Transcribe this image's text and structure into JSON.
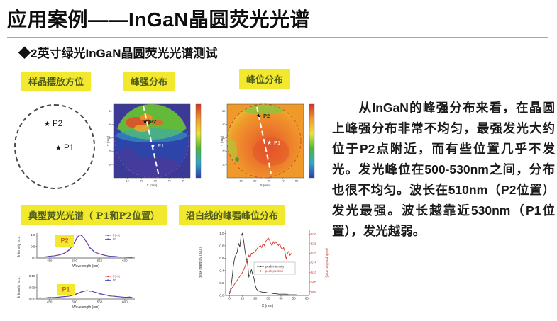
{
  "slide": {
    "title": "应用案例——InGaN晶圆荧光光谱",
    "subtitle": "◆2英寸绿光InGaN晶圆荧光光谱测试",
    "body_text": "从InGaN的峰强分布来看，在晶圆上峰强分布非常不均匀，最强发光大约位于P2点附近，而有些位置几乎不发光。发光峰位在500-530nm之间，分布也很不均匀。波长在510nm（P2位置）发光最强。波长越靠近530nm（P1位置），发光越弱。"
  },
  "labels": {
    "sample_layout": "样品摆放方位",
    "peak_intensity_map": "峰强分布",
    "peak_position_map": "峰位分布",
    "typical_spectra": "典型荧光光谱（ P1和P2位置）",
    "line_profile": "沿白线的峰强峰位分布"
  },
  "markers": {
    "p1": "P1",
    "p2": "P2"
  },
  "colors": {
    "highlight": "#f2e82d",
    "tag_text": "#4e5c1e",
    "annotation_text": "#c4641d",
    "series_red": "#d6372b",
    "series_blue": "#4343c0",
    "series_black": "#333333"
  },
  "chart_data": [
    {
      "id": "map-intensity",
      "type": "heatmap",
      "title": "峰强分布",
      "xlabel": "X (mm)",
      "ylabel": "Y (mm)",
      "xlim": [
        0,
        55
      ],
      "ylim": [
        0,
        55
      ],
      "xticks": [
        10,
        20,
        30,
        40,
        50
      ],
      "yticks": [
        10,
        20,
        30,
        40,
        50
      ],
      "summary": "wafer map: strong emission (green/red) near P2 at top, very weak (dark blue) over lower two thirds; white dashed scan line through P2 and P1",
      "colorbar": "rainbow, high at top"
    },
    {
      "id": "map-position",
      "type": "heatmap",
      "title": "峰位分布",
      "xlabel": "X (mm)",
      "ylabel": "Y (mm)",
      "xlim": [
        0,
        55
      ],
      "ylim": [
        0,
        55
      ],
      "xticks": [
        10,
        20,
        30,
        40,
        50
      ],
      "yticks": [
        10,
        20,
        30,
        40,
        50
      ],
      "summary": "wafer map: peak wavelength ~510nm (green) near top edge/P2, ~525-530nm (orange/red) at center near P1; white dashed scan line",
      "colorbar": "rainbow, high at top"
    },
    {
      "id": "spectrum-p2",
      "type": "line",
      "annotation": "P2",
      "xlabel": "Wavelength (nm)",
      "ylabel": "Intensity (a.u.)",
      "xlim": [
        425,
        620
      ],
      "ylim": [
        0,
        1.08
      ],
      "xticks": [
        450,
        500,
        550,
        600
      ],
      "yticks": [
        0,
        0.5,
        1.0
      ],
      "ytick_labels": [
        "0.0",
        "0.5",
        "1.0"
      ],
      "legend": [
        {
          "label": "P2-fit",
          "color": "#d6372b"
        },
        {
          "label": "P2",
          "color": "#4343c0"
        }
      ],
      "series": [
        {
          "name": "P2-fit",
          "color": "#d6372b",
          "x": [
            430,
            440,
            450,
            460,
            470,
            480,
            490,
            495,
            500,
            505,
            510,
            512,
            515,
            520,
            525,
            530,
            540,
            550,
            560,
            570,
            580,
            590,
            600,
            610,
            615
          ],
          "y": [
            0.04,
            0.05,
            0.07,
            0.1,
            0.14,
            0.22,
            0.37,
            0.5,
            0.67,
            0.86,
            0.99,
            1.0,
            0.97,
            0.82,
            0.63,
            0.47,
            0.27,
            0.17,
            0.11,
            0.08,
            0.06,
            0.05,
            0.04,
            0.03,
            0.03
          ]
        },
        {
          "name": "P2",
          "color": "#4343c0",
          "x": [
            430,
            440,
            450,
            460,
            470,
            480,
            490,
            495,
            500,
            505,
            510,
            512,
            515,
            520,
            525,
            530,
            540,
            550,
            560,
            570,
            580,
            590,
            600,
            610,
            615
          ],
          "y": [
            0.05,
            0.04,
            0.08,
            0.09,
            0.13,
            0.2,
            0.35,
            0.52,
            0.7,
            0.9,
            1.0,
            0.99,
            0.95,
            0.84,
            0.66,
            0.44,
            0.25,
            0.18,
            0.12,
            0.07,
            0.07,
            0.04,
            0.05,
            0.04,
            0.03
          ]
        }
      ]
    },
    {
      "id": "spectrum-p1",
      "type": "line",
      "annotation": "P1",
      "xlabel": "Wavelength (nm)",
      "ylabel": "Intensity (a.u.)",
      "xlim": [
        425,
        620
      ],
      "ylim": [
        0,
        0.108
      ],
      "xticks": [
        450,
        500,
        550,
        600
      ],
      "yticks": [
        0,
        0.05,
        0.1
      ],
      "ytick_labels": [
        "0.00",
        "0.05",
        "0.10"
      ],
      "legend": [
        {
          "label": "P1-fit",
          "color": "#d6372b"
        },
        {
          "label": "P1",
          "color": "#4343c0"
        }
      ],
      "series": [
        {
          "name": "P1-fit",
          "color": "#d6372b",
          "x": [
            430,
            440,
            450,
            460,
            470,
            480,
            490,
            500,
            505,
            510,
            515,
            520,
            525,
            530,
            535,
            540,
            545,
            550,
            560,
            570,
            580,
            590,
            600,
            610,
            615
          ],
          "y": [
            0.005,
            0.005,
            0.006,
            0.007,
            0.008,
            0.01,
            0.013,
            0.018,
            0.022,
            0.027,
            0.031,
            0.034,
            0.036,
            0.035,
            0.033,
            0.03,
            0.027,
            0.024,
            0.018,
            0.014,
            0.011,
            0.009,
            0.008,
            0.007,
            0.007
          ]
        },
        {
          "name": "P1",
          "color": "#4343c0",
          "x": [
            430,
            440,
            450,
            460,
            470,
            480,
            490,
            500,
            505,
            510,
            515,
            520,
            525,
            530,
            535,
            540,
            545,
            550,
            560,
            570,
            580,
            590,
            600,
            610,
            615
          ],
          "y": [
            0.006,
            0.004,
            0.007,
            0.006,
            0.009,
            0.011,
            0.012,
            0.019,
            0.024,
            0.028,
            0.033,
            0.035,
            0.037,
            0.034,
            0.035,
            0.029,
            0.028,
            0.022,
            0.019,
            0.013,
            0.012,
            0.01,
            0.007,
            0.009,
            0.006
          ]
        }
      ]
    },
    {
      "id": "line-profile",
      "type": "line-dual",
      "xlabel": "X (mm)",
      "ylabel_left": "peak intensity (a.u.)",
      "ylabel_right": "peak position (nm)",
      "xlim": [
        -3,
        62
      ],
      "ylim_left": [
        0,
        1.05
      ],
      "ylim_right": [
        498,
        532
      ],
      "xticks": [
        0,
        10,
        20,
        30,
        40,
        50,
        60
      ],
      "yticks_left": [
        0,
        0.2,
        0.4,
        0.6,
        0.8,
        1.0
      ],
      "ytick_labels_left": [
        "0.0",
        "0.2",
        "0.4",
        "0.6",
        "0.8",
        "1.0"
      ],
      "yticks_right": [
        500,
        505,
        510,
        515,
        520,
        525,
        530
      ],
      "legend": [
        {
          "label": "peak intensity",
          "color": "#333333"
        },
        {
          "label": "peak position",
          "color": "#d6372b"
        }
      ],
      "series": [
        {
          "name": "peak intensity",
          "axis": "left",
          "color": "#333333",
          "x": [
            0,
            1,
            2,
            3,
            4,
            5,
            6,
            7,
            8,
            9,
            10,
            11,
            12,
            13,
            14,
            15,
            16,
            17,
            18,
            19,
            20,
            21,
            22,
            24,
            26,
            28,
            30,
            32,
            34,
            36,
            38,
            40,
            42,
            44,
            46,
            48,
            50,
            52
          ],
          "y": [
            0.02,
            0.12,
            0.28,
            0.48,
            0.6,
            0.66,
            0.7,
            0.84,
            0.78,
            0.97,
            1.0,
            0.88,
            0.72,
            0.6,
            0.52,
            0.3,
            0.34,
            0.42,
            0.34,
            0.28,
            0.16,
            0.1,
            0.08,
            0.06,
            0.05,
            0.05,
            0.04,
            0.04,
            0.03,
            0.03,
            0.02,
            0.02,
            0.02,
            0.02,
            0.01,
            0.01,
            0.01,
            0.01
          ]
        },
        {
          "name": "peak position",
          "axis": "right",
          "color": "#d6372b",
          "x": [
            0,
            2,
            4,
            6,
            8,
            10,
            12,
            14,
            15,
            16,
            17,
            18,
            20,
            22,
            24,
            25,
            26,
            27,
            28,
            29,
            30,
            31,
            32,
            33,
            34,
            35,
            36,
            37,
            38,
            39,
            40,
            41,
            42,
            43,
            44,
            45,
            46,
            47,
            48
          ],
          "y": [
            500,
            502,
            504,
            506,
            508,
            510,
            513,
            517,
            519,
            518,
            520,
            520,
            521,
            523,
            524,
            523,
            525,
            524,
            526,
            527,
            528,
            527,
            525,
            524,
            526,
            525,
            526,
            525,
            524,
            525,
            523,
            522,
            523,
            521,
            517,
            520,
            521,
            519,
            520
          ]
        }
      ]
    }
  ]
}
